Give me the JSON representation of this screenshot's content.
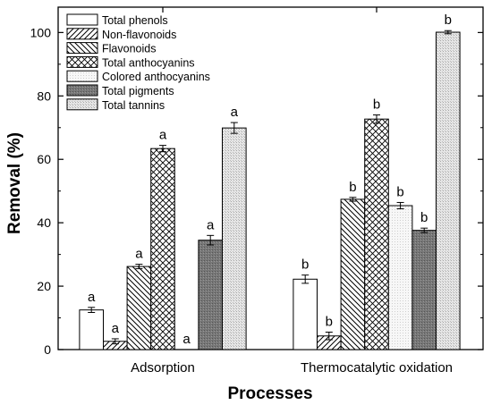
{
  "chart_data": {
    "type": "bar",
    "xlabel": "Processes",
    "ylabel": "Removal (%)",
    "ylim": [
      0,
      108
    ],
    "yticks": [
      0,
      20,
      40,
      60,
      80,
      100
    ],
    "categories": [
      "Adsorption",
      "Thermocatalytic oxidation"
    ],
    "legend_position": "top-left",
    "series": [
      {
        "name": "Total phenols",
        "pattern": "solid-white",
        "values": [
          12.5,
          22.2
        ],
        "errors": [
          0.8,
          1.3
        ],
        "labels": [
          "a",
          "b"
        ]
      },
      {
        "name": "Non-flavonoids",
        "pattern": "diagonal-forward",
        "values": [
          2.6,
          4.3
        ],
        "errors": [
          0.8,
          1.2
        ],
        "labels": [
          "a",
          "b"
        ]
      },
      {
        "name": "Flavonoids",
        "pattern": "diagonal-back",
        "values": [
          26.2,
          47.4
        ],
        "errors": [
          0.7,
          0.6
        ],
        "labels": [
          "a",
          "b"
        ]
      },
      {
        "name": "Total anthocyanins",
        "pattern": "crosshatch",
        "values": [
          63.4,
          72.7
        ],
        "errors": [
          1.0,
          1.3
        ],
        "labels": [
          "a",
          "b"
        ]
      },
      {
        "name": "Colored anthocyanins",
        "pattern": "light-dots",
        "values": [
          0,
          45.4
        ],
        "errors": [
          0,
          1.0
        ],
        "labels": [
          "a",
          "b"
        ]
      },
      {
        "name": "Total pigments",
        "pattern": "dark-gray",
        "values": [
          34.5,
          37.6
        ],
        "errors": [
          1.5,
          0.7
        ],
        "labels": [
          "a",
          "b"
        ]
      },
      {
        "name": "Total tannins",
        "pattern": "gray-dots",
        "values": [
          69.9,
          100.1
        ],
        "errors": [
          1.7,
          0.5
        ],
        "labels": [
          "a",
          "b"
        ]
      }
    ]
  }
}
